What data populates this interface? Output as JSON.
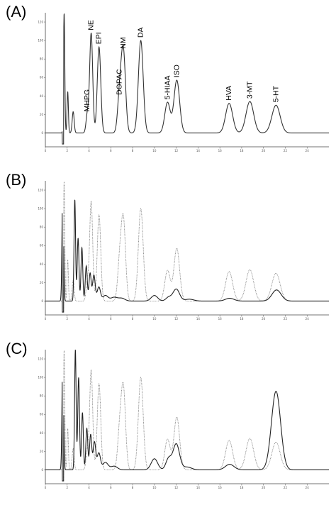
{
  "chart_data": [
    {
      "panel_label": "(A)",
      "type": "line",
      "xlim": [
        0,
        26
      ],
      "ylim": [
        -15,
        130
      ],
      "xticks": [
        "0",
        "2",
        "4",
        "6",
        "8",
        "10",
        "12",
        "14",
        "16",
        "18",
        "20",
        "22",
        "24"
      ],
      "yticks": [
        "0",
        "20",
        "40",
        "60",
        "80",
        "100",
        "120"
      ],
      "series": [
        {
          "style": "solid",
          "color": "#333333",
          "peaks": [
            {
              "rt": 1.72,
              "h": 130,
              "w": 0.06
            },
            {
              "rt": 2.05,
              "h": 45,
              "w": 0.06
            },
            {
              "rt": 2.55,
              "h": 23,
              "w": 0.09
            },
            {
              "rt": 3.85,
              "h": 20,
              "w": 0.12
            },
            {
              "rt": 4.2,
              "h": 108,
              "w": 0.14
            },
            {
              "rt": 4.92,
              "h": 93,
              "w": 0.16
            },
            {
              "rt": 6.8,
              "h": 38,
              "w": 0.18
            },
            {
              "rt": 7.15,
              "h": 88,
              "w": 0.2
            },
            {
              "rt": 8.75,
              "h": 100,
              "w": 0.22
            },
            {
              "rt": 11.2,
              "h": 33,
              "w": 0.25
            },
            {
              "rt": 12.05,
              "h": 57,
              "w": 0.26
            },
            {
              "rt": 16.85,
              "h": 32,
              "w": 0.32
            },
            {
              "rt": 18.75,
              "h": 34,
              "w": 0.35
            },
            {
              "rt": 21.15,
              "h": 30,
              "w": 0.38
            }
          ]
        }
      ],
      "annotations": [
        {
          "text": "MHPG",
          "rt": 3.85
        },
        {
          "text": "NE",
          "rt": 4.2
        },
        {
          "text": "EPI",
          "rt": 4.92
        },
        {
          "text": "DOPAC",
          "rt": 6.8
        },
        {
          "text": "NM",
          "rt": 7.15
        },
        {
          "text": "DA",
          "rt": 8.75
        },
        {
          "text": "5-HIAA",
          "rt": 11.2
        },
        {
          "text": "ISO",
          "rt": 12.05
        },
        {
          "text": "HVA",
          "rt": 16.85
        },
        {
          "text": "3-MT",
          "rt": 18.75
        },
        {
          "text": "5-HT",
          "rt": 21.15
        }
      ]
    },
    {
      "panel_label": "(B)",
      "type": "line",
      "xlim": [
        0,
        26
      ],
      "ylim": [
        -15,
        130
      ],
      "xticks": [
        "0",
        "2",
        "4",
        "6",
        "8",
        "10",
        "12",
        "14",
        "16",
        "18",
        "20",
        "22",
        "24"
      ],
      "yticks": [
        "0",
        "20",
        "40",
        "60",
        "80",
        "100",
        "120"
      ],
      "series": [
        {
          "style": "dotted",
          "color": "#8a8a8a",
          "peaks": [
            {
              "rt": 1.72,
              "h": 130,
              "w": 0.06
            },
            {
              "rt": 2.05,
              "h": 45,
              "w": 0.06
            },
            {
              "rt": 2.55,
              "h": 23,
              "w": 0.09
            },
            {
              "rt": 3.85,
              "h": 20,
              "w": 0.12
            },
            {
              "rt": 4.2,
              "h": 108,
              "w": 0.14
            },
            {
              "rt": 4.92,
              "h": 93,
              "w": 0.16
            },
            {
              "rt": 6.8,
              "h": 38,
              "w": 0.18
            },
            {
              "rt": 7.15,
              "h": 88,
              "w": 0.2
            },
            {
              "rt": 8.75,
              "h": 100,
              "w": 0.22
            },
            {
              "rt": 11.2,
              "h": 33,
              "w": 0.25
            },
            {
              "rt": 12.05,
              "h": 57,
              "w": 0.26
            },
            {
              "rt": 16.85,
              "h": 32,
              "w": 0.32
            },
            {
              "rt": 18.75,
              "h": 34,
              "w": 0.35
            },
            {
              "rt": 21.15,
              "h": 30,
              "w": 0.38
            }
          ]
        },
        {
          "style": "solid",
          "color": "#222222",
          "peaks": [
            {
              "rt": 1.6,
              "h": 135,
              "w": 0.07
            },
            {
              "rt": 2.7,
              "h": 110,
              "w": 0.07
            },
            {
              "rt": 3.0,
              "h": 68,
              "w": 0.08
            },
            {
              "rt": 3.35,
              "h": 58,
              "w": 0.08
            },
            {
              "rt": 3.75,
              "h": 38,
              "w": 0.09
            },
            {
              "rt": 4.1,
              "h": 30,
              "w": 0.1
            },
            {
              "rt": 4.45,
              "h": 28,
              "w": 0.12
            },
            {
              "rt": 4.9,
              "h": 15,
              "w": 0.15
            },
            {
              "rt": 5.5,
              "h": 6,
              "w": 0.25
            },
            {
              "rt": 6.3,
              "h": 4,
              "w": 0.3
            },
            {
              "rt": 7.0,
              "h": 3,
              "w": 0.3
            },
            {
              "rt": 10.0,
              "h": 6,
              "w": 0.3
            },
            {
              "rt": 11.3,
              "h": 4,
              "w": 0.25
            },
            {
              "rt": 12.0,
              "h": 13,
              "w": 0.3
            },
            {
              "rt": 13.2,
              "h": 2,
              "w": 0.4
            },
            {
              "rt": 16.9,
              "h": 3,
              "w": 0.4
            },
            {
              "rt": 21.2,
              "h": 12,
              "w": 0.42
            }
          ]
        }
      ]
    },
    {
      "panel_label": "(C)",
      "type": "line",
      "xlim": [
        0,
        26
      ],
      "ylim": [
        -15,
        130
      ],
      "xticks": [
        "0",
        "2",
        "4",
        "6",
        "8",
        "10",
        "12",
        "14",
        "16",
        "18",
        "20",
        "22",
        "24"
      ],
      "yticks": [
        "0",
        "20",
        "40",
        "60",
        "80",
        "100",
        "120"
      ],
      "series": [
        {
          "style": "dotted",
          "color": "#8a8a8a",
          "peaks": [
            {
              "rt": 1.72,
              "h": 130,
              "w": 0.06
            },
            {
              "rt": 2.05,
              "h": 45,
              "w": 0.06
            },
            {
              "rt": 2.55,
              "h": 23,
              "w": 0.09
            },
            {
              "rt": 3.85,
              "h": 20,
              "w": 0.12
            },
            {
              "rt": 4.2,
              "h": 108,
              "w": 0.14
            },
            {
              "rt": 4.92,
              "h": 93,
              "w": 0.16
            },
            {
              "rt": 6.8,
              "h": 38,
              "w": 0.18
            },
            {
              "rt": 7.15,
              "h": 88,
              "w": 0.2
            },
            {
              "rt": 8.75,
              "h": 100,
              "w": 0.22
            },
            {
              "rt": 11.2,
              "h": 33,
              "w": 0.25
            },
            {
              "rt": 12.05,
              "h": 57,
              "w": 0.26
            },
            {
              "rt": 16.85,
              "h": 32,
              "w": 0.32
            },
            {
              "rt": 18.75,
              "h": 34,
              "w": 0.35
            },
            {
              "rt": 21.15,
              "h": 30,
              "w": 0.38
            }
          ]
        },
        {
          "style": "solid",
          "color": "#222222",
          "peaks": [
            {
              "rt": 1.6,
              "h": 135,
              "w": 0.07
            },
            {
              "rt": 2.75,
              "h": 130,
              "w": 0.07
            },
            {
              "rt": 3.05,
              "h": 100,
              "w": 0.08
            },
            {
              "rt": 3.4,
              "h": 62,
              "w": 0.08
            },
            {
              "rt": 3.8,
              "h": 45,
              "w": 0.09
            },
            {
              "rt": 4.15,
              "h": 38,
              "w": 0.1
            },
            {
              "rt": 4.5,
              "h": 30,
              "w": 0.12
            },
            {
              "rt": 4.9,
              "h": 18,
              "w": 0.15
            },
            {
              "rt": 5.5,
              "h": 8,
              "w": 0.25
            },
            {
              "rt": 6.3,
              "h": 4,
              "w": 0.3
            },
            {
              "rt": 10.0,
              "h": 12,
              "w": 0.3
            },
            {
              "rt": 11.3,
              "h": 12,
              "w": 0.25
            },
            {
              "rt": 12.0,
              "h": 28,
              "w": 0.3
            },
            {
              "rt": 13.0,
              "h": 3,
              "w": 0.4
            },
            {
              "rt": 16.9,
              "h": 6,
              "w": 0.4
            },
            {
              "rt": 21.15,
              "h": 85,
              "w": 0.42
            }
          ]
        }
      ]
    }
  ]
}
